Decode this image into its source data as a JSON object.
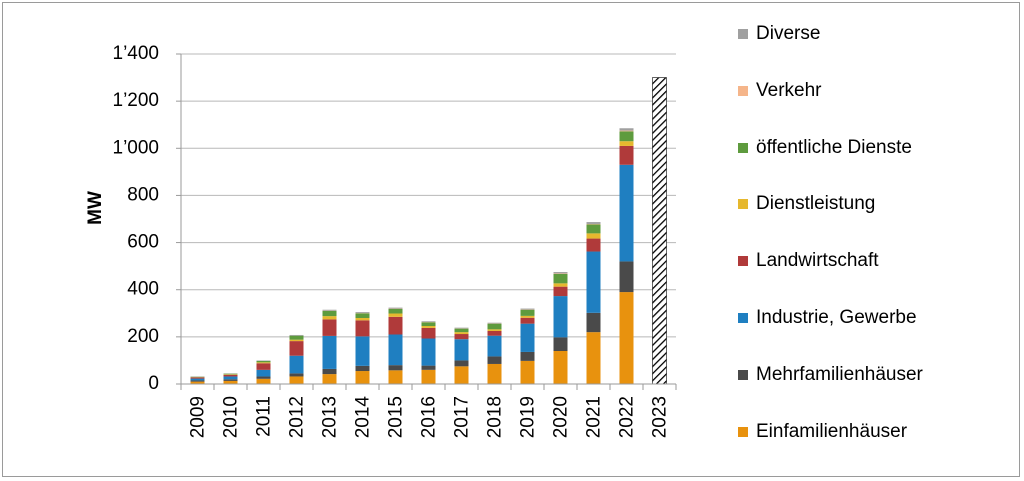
{
  "chart_data": {
    "type": "bar",
    "stacked": true,
    "ylabel": "MW",
    "ylim": [
      0,
      1400
    ],
    "yticks": [
      "0",
      "200",
      "400",
      "600",
      "800",
      "1’000",
      "1’200",
      "1’400"
    ],
    "ytick_values": [
      0,
      200,
      400,
      600,
      800,
      1000,
      1200,
      1400
    ],
    "categories": [
      "2009",
      "2010",
      "2011",
      "2012",
      "2013",
      "2014",
      "2015",
      "2016",
      "2017",
      "2018",
      "2019",
      "2020",
      "2021",
      "2022",
      "2023"
    ],
    "series": [
      {
        "name": "Einfamilienhäuser",
        "color": "#E8920E",
        "values": [
          10,
          13,
          22,
          32,
          42,
          55,
          58,
          60,
          75,
          85,
          98,
          140,
          220,
          390,
          null
        ]
      },
      {
        "name": "Mehrfamilienhäuser",
        "color": "#4A4A4A",
        "values": [
          5,
          7,
          10,
          13,
          22,
          22,
          22,
          18,
          25,
          32,
          38,
          58,
          82,
          130,
          null
        ]
      },
      {
        "name": "Industrie, Gewerbe",
        "color": "#1F7FC1",
        "values": [
          8,
          12,
          28,
          75,
          140,
          125,
          130,
          115,
          90,
          88,
          120,
          175,
          260,
          410,
          null
        ]
      },
      {
        "name": "Landwirtschaft",
        "color": "#B03A3A",
        "values": [
          5,
          7,
          28,
          62,
          70,
          68,
          75,
          45,
          22,
          20,
          25,
          40,
          55,
          80,
          null
        ]
      },
      {
        "name": "Dienstleistung",
        "color": "#E6B82E",
        "values": [
          1,
          2,
          4,
          6,
          14,
          10,
          14,
          8,
          8,
          7,
          8,
          14,
          22,
          20,
          null
        ]
      },
      {
        "name": "öffentliche Dienste",
        "color": "#5E9B3E",
        "values": [
          2,
          3,
          6,
          17,
          22,
          20,
          20,
          16,
          15,
          24,
          26,
          40,
          38,
          42,
          null
        ]
      },
      {
        "name": "Verkehr",
        "color": "#F5B58A",
        "values": [
          0,
          0,
          0,
          0,
          1,
          1,
          1,
          1,
          1,
          1,
          1,
          2,
          2,
          3,
          null
        ]
      },
      {
        "name": "Diverse",
        "color": "#A0A0A0",
        "values": [
          1,
          1,
          2,
          3,
          4,
          4,
          4,
          3,
          3,
          3,
          4,
          6,
          8,
          10,
          null
        ]
      }
    ],
    "projection_bar": {
      "category": "2023",
      "value": 1300,
      "pattern": "diagonal-hatch"
    },
    "legend": {
      "position": "right",
      "order": [
        "Diverse",
        "Verkehr",
        "öffentliche Dienste",
        "Dienstleistung",
        "Landwirtschaft",
        "Industrie, Gewerbe",
        "Mehrfamilienhäuser",
        "Einfamilienhäuser"
      ]
    },
    "grid": {
      "horizontal": true,
      "vertical": false
    }
  }
}
